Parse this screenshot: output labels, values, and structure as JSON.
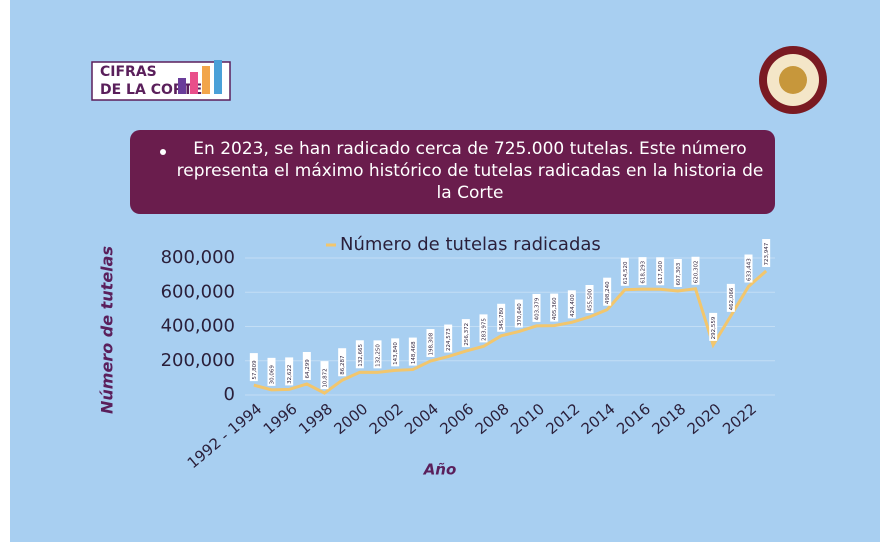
{
  "logo": {
    "line1": "CIFRAS",
    "line2": "DE LA CORTE"
  },
  "banner": {
    "text": "En 2023, se han radicado cerca de 725.000 tutelas. Este número representa el máximo histórico de tutelas radicadas en la historia de la Corte"
  },
  "chart_data": {
    "type": "line",
    "y_label": "Número de tutelas",
    "x_label": "Año",
    "categories": [
      "1992 - 1994",
      null,
      "1996",
      null,
      "1998",
      null,
      "2000",
      null,
      "2002",
      null,
      "2004",
      null,
      "2006",
      null,
      "2008",
      null,
      "2010",
      null,
      "2012",
      null,
      "2014",
      null,
      "2016",
      null,
      "2018",
      null,
      "2020",
      null,
      "2022",
      null
    ],
    "series": [
      {
        "name": "Número de tutelas radicadas",
        "color": "#f2c66d",
        "values": [
          57809,
          30069,
          32622,
          64299,
          10872,
          86287,
          132665,
          132250,
          143840,
          148468,
          198308,
          224573,
          256372,
          283975,
          345780,
          370640,
          403379,
          405360,
          424400,
          455500,
          498240,
          614520,
          618293,
          617500,
          607303,
          620302,
          292559,
          462066,
          633443,
          723947
        ],
        "value_labels": [
          "57,809",
          "30,069",
          "32,622",
          "64,299",
          "10,872",
          "86,287",
          "132,665",
          "132,250",
          "143,840",
          "148,468",
          "198,308",
          "224,573",
          "256,372",
          "283,975",
          "345,780",
          "370,640",
          "403,379",
          "405,360",
          "424,400",
          "455,500",
          "498,240",
          "614,520",
          "618,293",
          "617,500",
          "607,303",
          "620,302",
          "292,559",
          "462,066",
          "633,443",
          "723,947"
        ]
      }
    ],
    "ylim": [
      0,
      800000
    ],
    "yticks": [
      0,
      {
        "value": 200000,
        "label": "200,000"
      },
      {
        "value": 400000,
        "label": "400,000"
      },
      {
        "value": 600000,
        "label": "600,000"
      },
      {
        "value": 800000,
        "label": "800,000"
      }
    ],
    "grid": true,
    "legend": "top"
  }
}
